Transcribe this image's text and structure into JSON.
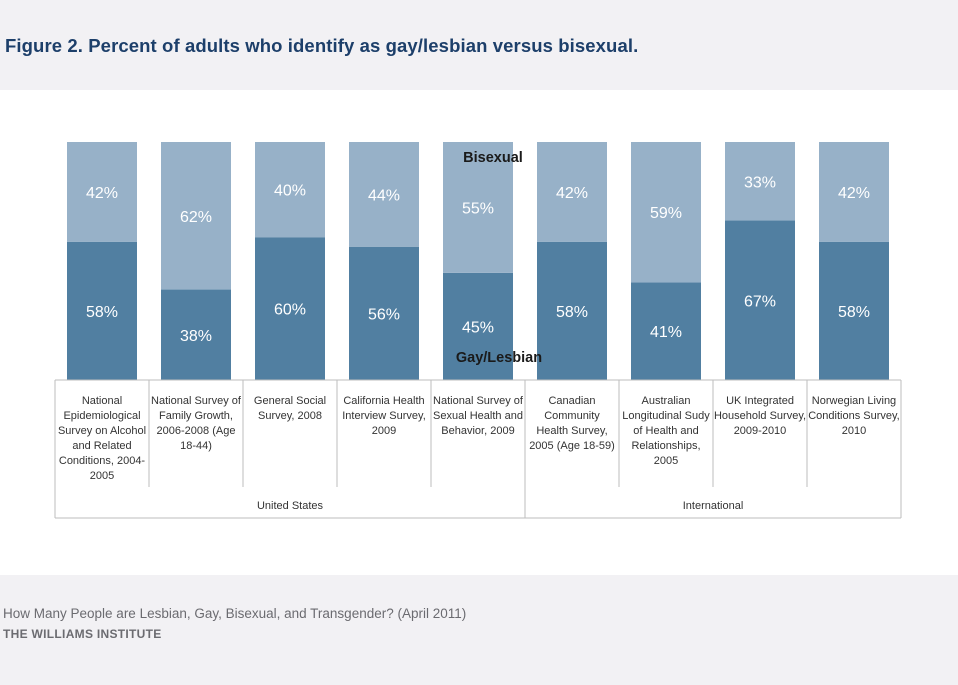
{
  "title": "Figure 2. Percent of adults who identify as gay/lesbian versus bisexual.",
  "footer": {
    "source": "How Many People are Lesbian, Gay, Bisexual, and Transgender? (April 2011)",
    "org": "THE WILLIAMS INSTITUTE"
  },
  "colors": {
    "gay_lesbian": "#517fa1",
    "bisexual": "#97b1c8",
    "page_bg": "#f2f1f4",
    "title": "#1d3f6a"
  },
  "chart_data": {
    "type": "bar",
    "stacked": true,
    "percent_stacked": true,
    "categories": [
      [
        "National",
        "Epidemiological",
        "Survey on Alcohol",
        "and Related",
        "Conditions, 2004-",
        "2005"
      ],
      [
        "National Survey of",
        "Family Growth,",
        "2006-2008 (Age",
        "18-44)"
      ],
      [
        "General Social",
        "Survey, 2008"
      ],
      [
        "California Health",
        "Interview Survey,",
        "2009"
      ],
      [
        "National Survey of",
        "Sexual Health and",
        "Behavior, 2009"
      ],
      [
        "Canadian",
        "Community",
        "Health Survey,",
        "2005 (Age 18-59)"
      ],
      [
        "Australian",
        "Longitudinal Sudy",
        "of Health and",
        "Relationships,",
        "2005"
      ],
      [
        "UK Integrated",
        "Household Survey,",
        "2009-2010"
      ],
      [
        "Norwegian Living",
        "Conditions Survey,",
        "2010"
      ]
    ],
    "groups": [
      {
        "label": "United States",
        "from": 0,
        "to": 4
      },
      {
        "label": "International",
        "from": 5,
        "to": 8
      }
    ],
    "series": [
      {
        "name": "Gay/Lesbian",
        "values": [
          58,
          38,
          60,
          56,
          45,
          58,
          41,
          67,
          58
        ],
        "labels": [
          "58%",
          "38%",
          "60%",
          "56%",
          "45%",
          "58%",
          "41%",
          "67%",
          "58%"
        ]
      },
      {
        "name": "Bisexual",
        "values": [
          42,
          62,
          40,
          44,
          55,
          42,
          59,
          33,
          42
        ],
        "labels": [
          "42%",
          "62%",
          "40%",
          "44%",
          "55%",
          "42%",
          "59%",
          "33%",
          "42%"
        ]
      }
    ],
    "ylim": [
      0,
      100
    ],
    "grid": false,
    "legend": "inline"
  }
}
